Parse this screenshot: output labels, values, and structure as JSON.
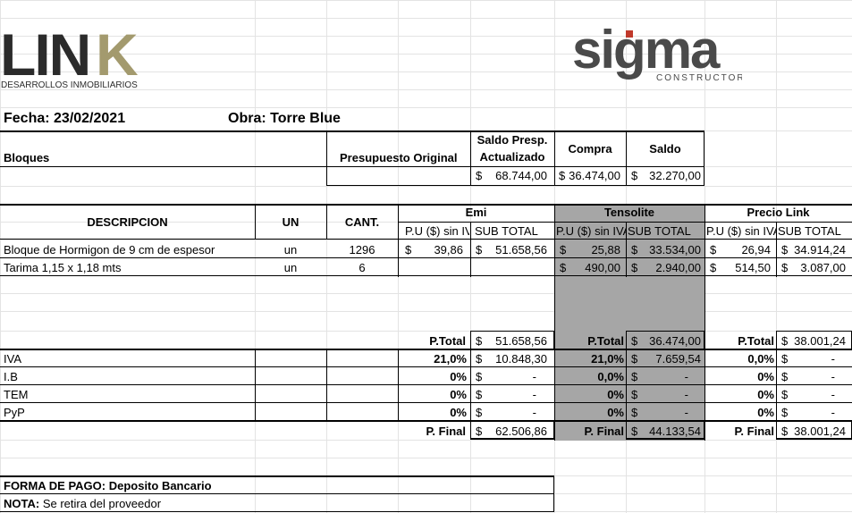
{
  "logos": {
    "link_text": "LINK",
    "link_subtitle": "DESARROLLOS INMOBILIARIOS",
    "sigma_text": "sigma",
    "sigma_subtitle": "CONSTRUCTORA"
  },
  "header": {
    "fecha": "Fecha: 23/02/2021",
    "obra": "Obra: Torre Blue"
  },
  "summary": {
    "bloques": "Bloques",
    "presupuesto_original": "Presupuesto Original",
    "saldo_presp_line1": "Saldo Presp.",
    "saldo_presp_line2": "Actualizado",
    "compra": "Compra",
    "saldo": "Saldo",
    "saldo_presp_value": "68.744,00",
    "compra_value": "36.474,00",
    "saldo_value": "32.270,00",
    "currency": "$"
  },
  "table": {
    "descripcion": "DESCRIPCION",
    "un": "UN",
    "cant": "CANT.",
    "groups": [
      "Emi",
      "Tensolite",
      "Precio Link"
    ],
    "pu": "P.U ($) sin IVA",
    "subtotal": "SUB TOTAL",
    "rows": [
      {
        "desc": "Bloque de Hormigon de 9 cm de espesor",
        "un": "un",
        "cant": "1296",
        "emi_pu": "39,86",
        "emi_st": "51.658,56",
        "ten_pu": "25,88",
        "ten_st": "33.534,00",
        "link_pu": "26,94",
        "link_st": "34.914,24"
      },
      {
        "desc": "Tarima 1,15 x 1,18 mts",
        "un": "un",
        "cant": "6",
        "emi_pu": "",
        "emi_st": "",
        "ten_pu": "490,00",
        "ten_st": "2.940,00",
        "link_pu": "514,50",
        "link_st": "3.087,00"
      }
    ]
  },
  "totals": {
    "ptotal_label": "P.Total",
    "emi_ptotal": "51.658,56",
    "ten_ptotal": "36.474,00",
    "link_ptotal": "38.001,24",
    "taxes": [
      {
        "name": "IVA",
        "emi_pct": "21,0%",
        "emi_val": "10.848,30",
        "ten_pct": "21,0%",
        "ten_val": "7.659,54",
        "link_pct": "0,0%",
        "link_val": "-"
      },
      {
        "name": "I.B",
        "emi_pct": "0%",
        "emi_val": "-",
        "ten_pct": "0,0%",
        "ten_val": "-",
        "link_pct": "0%",
        "link_val": "-"
      },
      {
        "name": "TEM",
        "emi_pct": "0%",
        "emi_val": "-",
        "ten_pct": "0%",
        "ten_val": "-",
        "link_pct": "0%",
        "link_val": "-"
      },
      {
        "name": "PyP",
        "emi_pct": "0%",
        "emi_val": "-",
        "ten_pct": "0%",
        "ten_val": "-",
        "link_pct": "0%",
        "link_val": "-"
      }
    ],
    "pfinal_label": "P. Final",
    "emi_pfinal": "62.506,86",
    "ten_pfinal": "44.133,54",
    "link_pfinal": "38.001,24"
  },
  "footer": {
    "forma_pago": "FORMA DE PAGO: Deposito Bancario",
    "nota_label": "NOTA:",
    "nota_text": " Se retira del proveedor"
  },
  "colors": {
    "link_dark": "#2b2b2b",
    "link_gold": "#a39a6e",
    "sigma_dark": "#4a4a4a",
    "sigma_red": "#c0392b",
    "shade": "#a6a6a6"
  }
}
